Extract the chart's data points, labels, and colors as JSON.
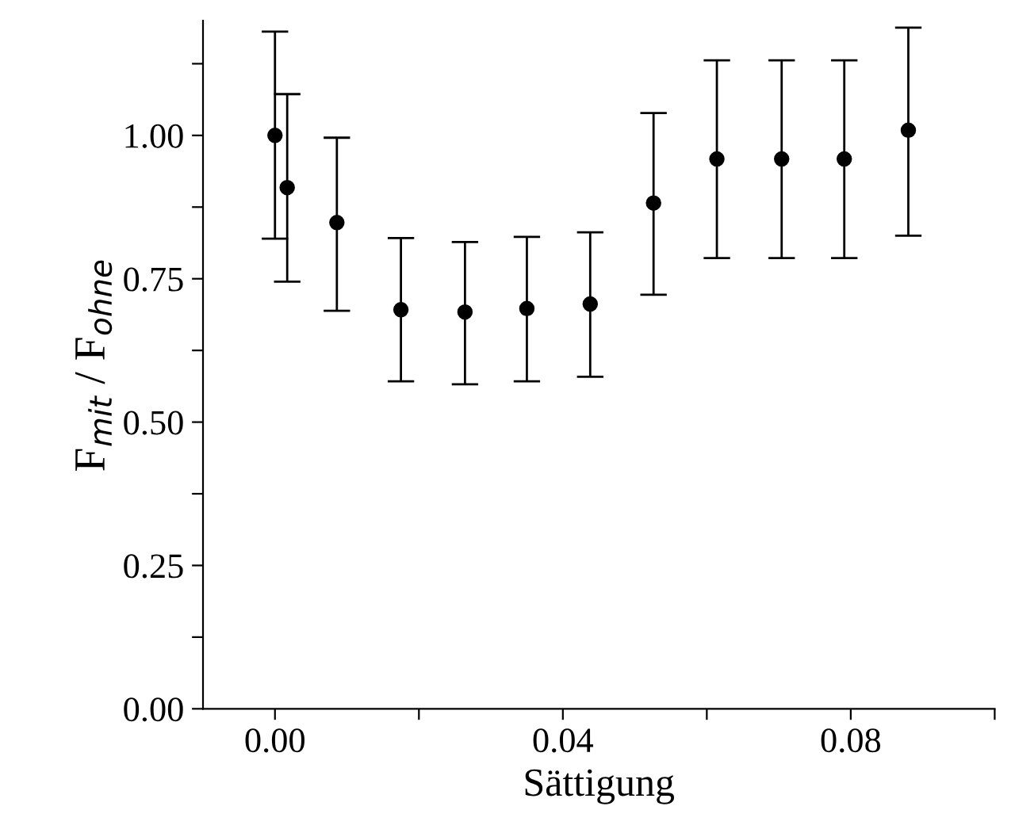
{
  "chart_data": {
    "type": "scatter",
    "xlabel": "Sättigung",
    "ylabel": "F$_{mit}$ / F$_{ohne}$",
    "x": [
      0,
      0.0017,
      0.0086,
      0.0175,
      0.0264,
      0.035,
      0.0438,
      0.0526,
      0.0614,
      0.0704,
      0.0791,
      0.088
    ],
    "values": [
      1.0,
      0.909,
      0.848,
      0.696,
      0.692,
      0.698,
      0.706,
      0.882,
      0.959,
      0.959,
      0.959,
      1.009
    ],
    "errors": [
      [
        0.82,
        1.181
      ],
      [
        0.745,
        1.072
      ],
      [
        0.694,
        0.996
      ],
      [
        0.571,
        0.821
      ],
      [
        0.566,
        0.814
      ],
      [
        0.571,
        0.823
      ],
      [
        0.579,
        0.831
      ],
      [
        0.722,
        1.039
      ],
      [
        0.786,
        1.131
      ],
      [
        0.786,
        1.131
      ],
      [
        0.786,
        1.131
      ],
      [
        0.825,
        1.188
      ]
    ],
    "color": "#000000",
    "marker": "circle",
    "xlim": [
      -0.01,
      0.1
    ],
    "ylim": [
      0,
      1.2
    ],
    "xticks": [
      {
        "value": 0,
        "label": "0.00"
      },
      {
        "value": 0.02,
        "label": null
      },
      {
        "value": 0.04,
        "label": "0.04"
      },
      {
        "value": 0.06,
        "label": null
      },
      {
        "value": 0.08,
        "label": "0.08"
      },
      {
        "value": 0.1,
        "label": null
      }
    ],
    "yticks": [
      {
        "value": 0,
        "label": "0.00"
      },
      {
        "value": 0.125,
        "label": null
      },
      {
        "value": 0.25,
        "label": "0.25"
      },
      {
        "value": 0.375,
        "label": null
      },
      {
        "value": 0.5,
        "label": "0.50"
      },
      {
        "value": 0.625,
        "label": null
      },
      {
        "value": 0.75,
        "label": "0.75"
      },
      {
        "value": 0.875,
        "label": null
      },
      {
        "value": 1.0,
        "label": "1.00"
      },
      {
        "value": 1.125,
        "label": null
      }
    ],
    "grid": false,
    "legend": false
  }
}
